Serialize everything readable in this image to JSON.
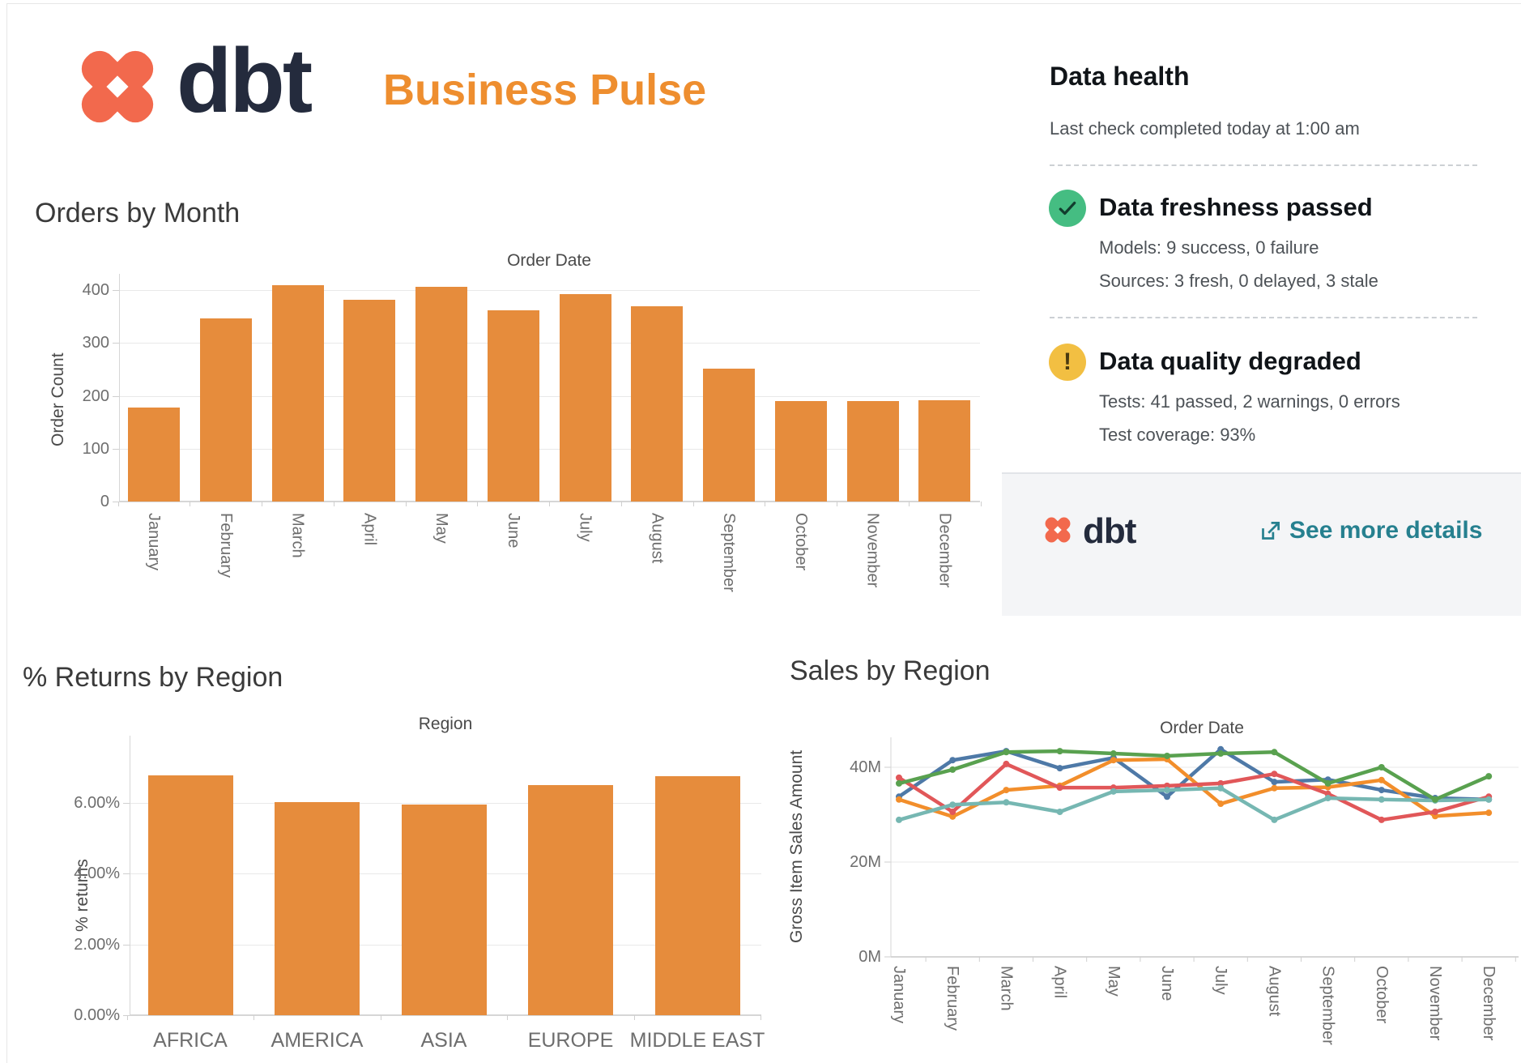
{
  "header": {
    "brand": "dbt",
    "title": "Business Pulse",
    "brand_color": "#f2694d",
    "title_color": "#ee8e2f"
  },
  "data_health": {
    "title": "Data health",
    "subtitle": "Last check completed today at 1:00 am",
    "freshness": {
      "icon": "check-icon",
      "status_color": "#45bd82",
      "title": "Data freshness passed",
      "models": "Models: 9 success, 0 failure",
      "sources": "Sources: 3 fresh, 0 delayed, 3 stale"
    },
    "quality": {
      "icon": "warning-icon",
      "status_color": "#f2bf42",
      "title": "Data quality degraded",
      "tests": "Tests: 41 passed, 2 warnings, 0 errors",
      "coverage": "Test coverage: 93%"
    },
    "footer": {
      "brand": "dbt",
      "link_label": "See more details",
      "link_icon": "external-link-icon",
      "link_color": "#26808f"
    }
  },
  "chart_data": [
    {
      "id": "orders-by-month",
      "type": "bar",
      "title": "Orders by Month",
      "axis_title": "Order Date",
      "xlabel": "Order Date",
      "ylabel": "Order Count",
      "bar_color": "#e68c3c",
      "categories": [
        "January",
        "February",
        "March",
        "April",
        "May",
        "June",
        "July",
        "August",
        "September",
        "October",
        "November",
        "December"
      ],
      "values": [
        178,
        347,
        409,
        382,
        406,
        361,
        392,
        370,
        252,
        190,
        190,
        191
      ],
      "ytick_values": [
        0,
        100,
        200,
        300,
        400
      ],
      "ytick_labels": [
        "0",
        "100",
        "200",
        "300",
        "400"
      ],
      "ylim": [
        0,
        430
      ],
      "grid": true,
      "legend": "none"
    },
    {
      "id": "returns-by-region",
      "type": "bar",
      "title": "% Returns by Region",
      "axis_title": "Region",
      "xlabel": "Region",
      "ylabel": "% returns",
      "bar_color": "#e68c3c",
      "categories": [
        "AFRICA",
        "AMERICA",
        "ASIA",
        "EUROPE",
        "MIDDLE EAST"
      ],
      "values": [
        6.78,
        6.02,
        5.95,
        6.5,
        6.76
      ],
      "ytick_values": [
        0,
        2,
        4,
        6
      ],
      "ytick_labels": [
        "0.00%",
        "2.00%",
        "4.00%",
        "6.00%"
      ],
      "ylim": [
        0,
        7.6
      ],
      "grid": true,
      "legend": "none"
    },
    {
      "id": "sales-by-region",
      "type": "line",
      "title": "Sales by Region",
      "axis_title": "Order Date",
      "xlabel": "Order Date",
      "ylabel": "Gross Item Sales Amount",
      "x": [
        "January",
        "February",
        "March",
        "April",
        "May",
        "June",
        "July",
        "August",
        "September",
        "October",
        "November",
        "December"
      ],
      "series": [
        {
          "name": "series-blue",
          "color": "#4e79a7",
          "values": [
            33.8,
            41.5,
            43.4,
            39.8,
            42.0,
            33.8,
            43.8,
            36.9,
            37.4,
            35.2,
            33.5,
            33.2
          ]
        },
        {
          "name": "series-orange",
          "color": "#f28e2b",
          "values": [
            33.2,
            29.6,
            35.2,
            36.1,
            41.5,
            41.7,
            32.3,
            35.6,
            35.8,
            37.3,
            29.7,
            30.4
          ]
        },
        {
          "name": "series-red",
          "color": "#e15759",
          "values": [
            37.8,
            30.6,
            40.7,
            35.7,
            35.7,
            36.1,
            36.6,
            38.6,
            34.4,
            28.9,
            30.6,
            33.8
          ]
        },
        {
          "name": "series-teal",
          "color": "#76b7b2",
          "values": [
            28.9,
            32.1,
            32.6,
            30.6,
            34.9,
            35.2,
            35.6,
            28.9,
            33.5,
            33.2,
            33.0,
            33.2
          ]
        },
        {
          "name": "series-green",
          "color": "#59a14f",
          "values": [
            36.6,
            39.5,
            43.2,
            43.4,
            42.9,
            42.4,
            42.9,
            43.2,
            36.6,
            40.0,
            33.2,
            38.1
          ]
        }
      ],
      "ytick_values": [
        0,
        20,
        40
      ],
      "ytick_labels": [
        "0M",
        "20M",
        "40M"
      ],
      "ylim": [
        0,
        46
      ],
      "grid": true,
      "legend": "none"
    }
  ]
}
